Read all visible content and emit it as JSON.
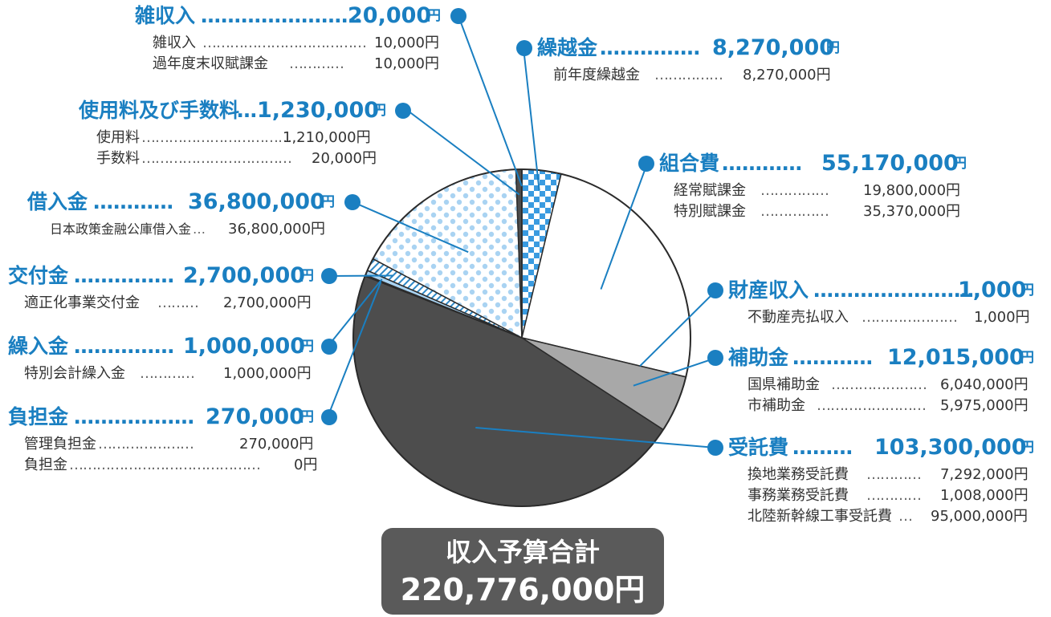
{
  "colors": {
    "accent_blue": "#1a7fc1",
    "slice_dark": "#4d4d4d",
    "slice_gray": "#a8a8a8",
    "slice_light_blue": "#a9d3f2",
    "total_box": "#5a5a5a"
  },
  "chart_data": {
    "type": "pie",
    "unit": "円",
    "slices": [
      {
        "name": "繰越金",
        "amount": "8,270,000",
        "value": 8270000,
        "fill": "checker"
      },
      {
        "name": "組合費",
        "amount": "55,170,000",
        "value": 55170000,
        "fill": "white"
      },
      {
        "name": "財産収入",
        "amount": "1,000",
        "value": 1000,
        "fill": "white"
      },
      {
        "name": "補助金",
        "amount": "12,015,000",
        "value": 12015000,
        "fill": "gray"
      },
      {
        "name": "受託費",
        "amount": "103,300,000",
        "value": 103300000,
        "fill": "dark"
      },
      {
        "name": "負担金",
        "amount": "270,000",
        "value": 270000,
        "fill": "light_gray"
      },
      {
        "name": "繰入金",
        "amount": "1,000,000",
        "value": 1000000,
        "fill": "light_blue"
      },
      {
        "name": "交付金",
        "amount": "2,700,000",
        "value": 2700000,
        "fill": "hatched"
      },
      {
        "name": "借入金",
        "amount": "36,800,000",
        "value": 36800000,
        "fill": "dotted"
      },
      {
        "name": "使用料及び手数料",
        "amount": "1,230,000",
        "value": 1230000,
        "fill": "dark"
      },
      {
        "name": "雑収入",
        "amount": "20,000",
        "value": 20000,
        "fill": "dark"
      }
    ]
  },
  "categories": {
    "zatsu": {
      "name": "雑収入",
      "leader": "……………………",
      "amount": "20,000",
      "unit": "円",
      "items": [
        {
          "name": "雑収入",
          "leader": "………………………………",
          "amount": "10,000円"
        },
        {
          "name": "過年度末収賦課金",
          "leader": "…………",
          "amount": "10,000円"
        }
      ]
    },
    "shiyou": {
      "name": "使用料及び手数料",
      "leader": "…",
      "amount": "1,230,000",
      "unit": "円",
      "items": [
        {
          "name": "使用料",
          "leader": "……………………………",
          "amount": "1,210,000円"
        },
        {
          "name": "手数料",
          "leader": "……………………………",
          "amount": "20,000円"
        }
      ]
    },
    "kariire": {
      "name": "借入金",
      "leader": "…………",
      "amount": "36,800,000",
      "unit": "円",
      "items": [
        {
          "name": "日本政策金融公庫借入金",
          "leader": "…",
          "amount": "36,800,000円"
        }
      ]
    },
    "koufu": {
      "name": "交付金",
      "leader": "……………",
      "amount": "2,700,000",
      "unit": "円",
      "items": [
        {
          "name": "適正化事業交付金",
          "leader": "………",
          "amount": "2,700,000円"
        }
      ]
    },
    "kuriire": {
      "name": "繰入金",
      "leader": "……………",
      "amount": "1,000,000",
      "unit": "円",
      "items": [
        {
          "name": "特別会計繰入金",
          "leader": "…………",
          "amount": "1,000,000円"
        }
      ]
    },
    "futan": {
      "name": "負担金",
      "leader": "………………",
      "amount": "270,000",
      "unit": "円",
      "items": [
        {
          "name": "管理負担金",
          "leader": "…………………",
          "amount": "270,000円"
        },
        {
          "name": "負担金",
          "leader": "……………………………………",
          "amount": "0円"
        }
      ]
    },
    "kurikoshi": {
      "name": "繰越金",
      "leader": "……………",
      "amount": "8,270,000",
      "unit": "円",
      "items": [
        {
          "name": "前年度繰越金",
          "leader": "……………",
          "amount": "8,270,000円"
        }
      ]
    },
    "kumiai": {
      "name": "組合費",
      "leader": "…………",
      "amount": "55,170,000",
      "unit": "円",
      "items": [
        {
          "name": "経常賦課金",
          "leader": "……………",
          "amount": "19,800,000円"
        },
        {
          "name": "特別賦課金",
          "leader": "……………",
          "amount": "35,370,000円"
        }
      ]
    },
    "zaisan": {
      "name": "財産収入",
      "leader": "……………………",
      "amount": "1,000",
      "unit": "円",
      "items": [
        {
          "name": "不動産売払収入",
          "leader": "…………………",
          "amount": "1,000円"
        }
      ]
    },
    "hojo": {
      "name": "補助金",
      "leader": "…………",
      "amount": "12,015,000",
      "unit": "円",
      "items": [
        {
          "name": "国県補助金",
          "leader": "…………………",
          "amount": "6,040,000円"
        },
        {
          "name": "市補助金",
          "leader": "……………………",
          "amount": "5,975,000円"
        }
      ]
    },
    "jutaku": {
      "name": "受託費",
      "leader": "………",
      "amount": "103,300,000",
      "unit": "円",
      "items": [
        {
          "name": "換地業務受託費",
          "leader": "…………",
          "amount": "7,292,000円"
        },
        {
          "name": "事務業務受託費",
          "leader": "…………",
          "amount": "1,008,000円"
        },
        {
          "name": "北陸新幹線工事受託費",
          "leader": "…",
          "amount": "95,000,000円"
        }
      ]
    }
  },
  "total": {
    "label": "収入予算合計",
    "amount": "220,776,000円"
  }
}
